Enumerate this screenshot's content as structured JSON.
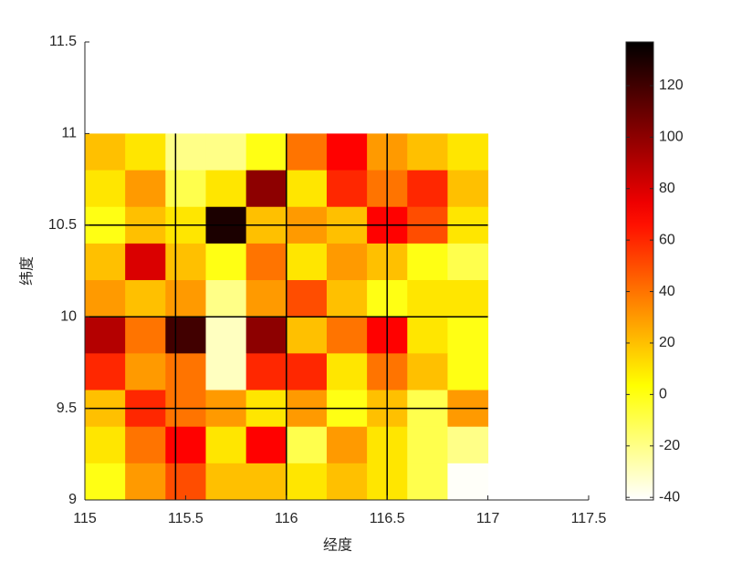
{
  "chart_data": {
    "type": "heatmap",
    "xlabel": "经度",
    "ylabel": "纬度",
    "xlim": [
      115,
      117.5
    ],
    "ylim": [
      9,
      11.5
    ],
    "xticks": [
      115,
      115.5,
      116,
      116.5,
      117,
      117.5
    ],
    "yticks": [
      9,
      9.5,
      10,
      10.5,
      11,
      11.5
    ],
    "x": [
      115.1,
      115.3,
      115.5,
      115.7,
      115.9,
      116.1,
      116.3,
      116.5,
      116.7,
      116.9
    ],
    "y": [
      10.9,
      10.7,
      10.5,
      10.3,
      10.1,
      9.9,
      9.7,
      9.5,
      9.3,
      9.1
    ],
    "cell": 0.2,
    "z": [
      [
        20,
        10,
        -20,
        -20,
        0,
        40,
        70,
        30,
        20,
        10
      ],
      [
        10,
        30,
        -10,
        10,
        100,
        10,
        60,
        40,
        60,
        20
      ],
      [
        0,
        20,
        10,
        130,
        20,
        30,
        20,
        70,
        50,
        10
      ],
      [
        20,
        80,
        20,
        0,
        40,
        10,
        30,
        20,
        0,
        -10
      ],
      [
        30,
        20,
        30,
        -20,
        30,
        50,
        20,
        0,
        10,
        10
      ],
      [
        90,
        40,
        120,
        -30,
        100,
        20,
        40,
        70,
        10,
        0
      ],
      [
        60,
        30,
        40,
        -30,
        60,
        60,
        10,
        40,
        20,
        0
      ],
      [
        20,
        60,
        40,
        30,
        10,
        30,
        0,
        20,
        -10,
        30
      ],
      [
        10,
        40,
        70,
        10,
        70,
        -10,
        30,
        10,
        -10,
        -20
      ],
      [
        0,
        30,
        50,
        20,
        20,
        10,
        20,
        10,
        -10,
        -40
      ]
    ],
    "colormap": "hot-reversed",
    "clim": [
      -41,
      137
    ],
    "cticks": [
      -40,
      -20,
      0,
      20,
      40,
      60,
      80,
      100,
      120
    ],
    "vlines": [
      115.45,
      116,
      116.5
    ],
    "hlines": [
      9.5,
      10,
      10.5
    ]
  }
}
